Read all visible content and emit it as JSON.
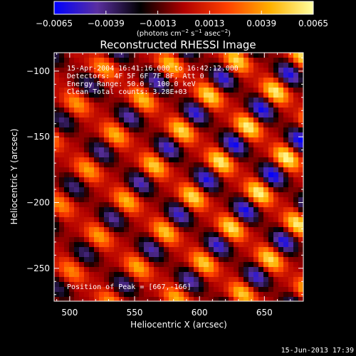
{
  "chart_data": {
    "type": "heatmap",
    "title": "Reconstructed RHESSI Image",
    "xlabel": "Heliocentric X (arcsec)",
    "ylabel": "Heliocentric Y (arcsec)",
    "xlim": [
      488,
      680
    ],
    "ylim": [
      -275,
      -86
    ],
    "x_ticks": [
      500,
      550,
      600,
      650
    ],
    "y_ticks": [
      -100,
      -150,
      -200,
      -250
    ],
    "x_tick_labels": [
      "500",
      "550",
      "600",
      "650"
    ],
    "y_tick_labels": [
      "−100",
      "−150",
      "−200",
      "−250"
    ],
    "colorbar": {
      "min": -0.0065,
      "max": 0.0065,
      "ticks": [
        -0.0065,
        -0.0039,
        -0.0013,
        0.0013,
        0.0039,
        0.0065
      ],
      "tick_labels": [
        "−0.0065",
        "−0.0039",
        "−0.0013",
        "0.0013",
        "0.0039",
        "0.0065"
      ],
      "unit_label": "(photons cm",
      "unit_exp1": "−2",
      "unit_mid": " s",
      "unit_exp2": "−1",
      "unit_mid2": " asec",
      "unit_exp3": "−2",
      "unit_end": ")",
      "colors": [
        "#0000ff",
        "#5a2fa0",
        "#000000",
        "#b00000",
        "#ff4000",
        "#ffb000",
        "#ffffa0"
      ]
    },
    "annotations": [
      "15-Apr-2004 16:41:16.000 to 16:42:12.000",
      "Detectors: 4F 5F 6F 7F 8F, Att 0",
      "Energy Range: 50.0 - 100.0 keV",
      "Clean    Total counts: 3.28E+03"
    ],
    "peak_label": "Position of Peak = [667,-166]",
    "peak": [
      667,
      -166
    ]
  },
  "footer": {
    "timestamp": "15-Jun-2013 17:39"
  }
}
